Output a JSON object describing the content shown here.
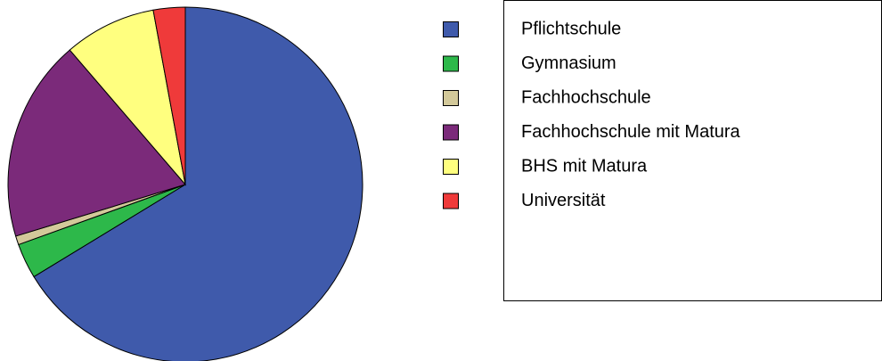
{
  "chart_data": {
    "type": "pie",
    "categories": [
      "Pflichtschule",
      "Gymnasium",
      "Fachhochschule",
      "Fachhochschule mit Matura",
      "BHS mit Matura",
      "Universität"
    ],
    "values": [
      66.3,
      3.2,
      0.8,
      18.4,
      8.4,
      2.9
    ],
    "colors": [
      "#3f5aab",
      "#2db84a",
      "#d3c99a",
      "#7b2a7a",
      "#ffff7f",
      "#ef3a3a"
    ],
    "legend": "right"
  }
}
